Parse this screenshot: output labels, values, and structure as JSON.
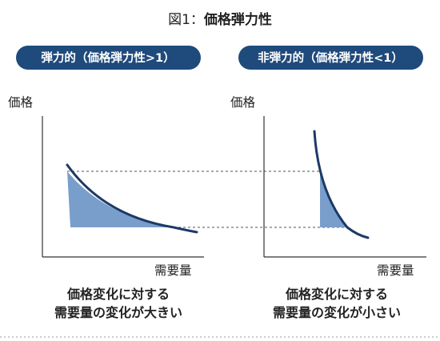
{
  "figure": {
    "title_prefix": "図1：",
    "title_main": "価格弾力性"
  },
  "panels": [
    {
      "badge": "弾力的（価格弾力性>1）",
      "y_axis_label": "価格",
      "x_axis_label": "需要量",
      "caption_lines": [
        "価格変化に対する",
        "需要量の変化が大きい"
      ]
    },
    {
      "badge": "非弾力的（価格弾力性<1）",
      "y_axis_label": "価格",
      "x_axis_label": "需要量",
      "caption_lines": [
        "価格変化に対する",
        "需要量の変化が小さい"
      ]
    }
  ],
  "colors": {
    "badge": "#1f4a7c",
    "curve": "#1d3a66",
    "shade": "#7a9ecb",
    "axis": "#333333",
    "guide": "#555555",
    "border_dots": "#bdbdbd"
  }
}
